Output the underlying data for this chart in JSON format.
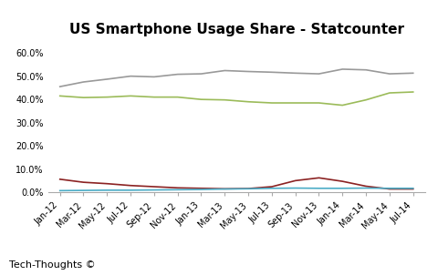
{
  "title": "US Smartphone Usage Share - Statcounter",
  "x_labels": [
    "Jan-12",
    "Mar-12",
    "May-12",
    "Jul-12",
    "Sep-12",
    "Nov-12",
    "Jan-13",
    "Mar-13",
    "May-13",
    "Jul-13",
    "Sep-13",
    "Nov-13",
    "Jan-14",
    "Mar-14",
    "May-14",
    "Jul-14"
  ],
  "blackberry": [
    0.057,
    0.044,
    0.038,
    0.03,
    0.025,
    0.02,
    0.018,
    0.016,
    0.017,
    0.025,
    0.051,
    0.063,
    0.048,
    0.027,
    0.015,
    0.015
  ],
  "iphone": [
    0.455,
    0.475,
    0.487,
    0.5,
    0.497,
    0.508,
    0.51,
    0.524,
    0.52,
    0.517,
    0.513,
    0.51,
    0.53,
    0.527,
    0.51,
    0.513
  ],
  "windows": [
    0.008,
    0.009,
    0.01,
    0.01,
    0.011,
    0.012,
    0.013,
    0.015,
    0.016,
    0.018,
    0.019,
    0.018,
    0.018,
    0.019,
    0.018,
    0.018
  ],
  "android": [
    0.415,
    0.408,
    0.41,
    0.415,
    0.41,
    0.41,
    0.4,
    0.398,
    0.39,
    0.385,
    0.385,
    0.385,
    0.375,
    0.398,
    0.428,
    0.432
  ],
  "blackberry_color": "#8B2222",
  "iphone_color": "#999999",
  "windows_color": "#4BACC6",
  "android_color": "#9BBB59",
  "footer": "Tech-Thoughts ©",
  "ylim": [
    0.0,
    0.65
  ],
  "yticks": [
    0.0,
    0.1,
    0.2,
    0.3,
    0.4,
    0.5,
    0.6
  ],
  "ytick_labels": [
    "0.0%",
    "10.0%",
    "20.0%",
    "30.0%",
    "40.0%",
    "50.0%",
    "60.0%"
  ],
  "background_color": "#FFFFFF",
  "title_fontsize": 11,
  "tick_fontsize": 7,
  "legend_fontsize": 8,
  "footer_fontsize": 8
}
